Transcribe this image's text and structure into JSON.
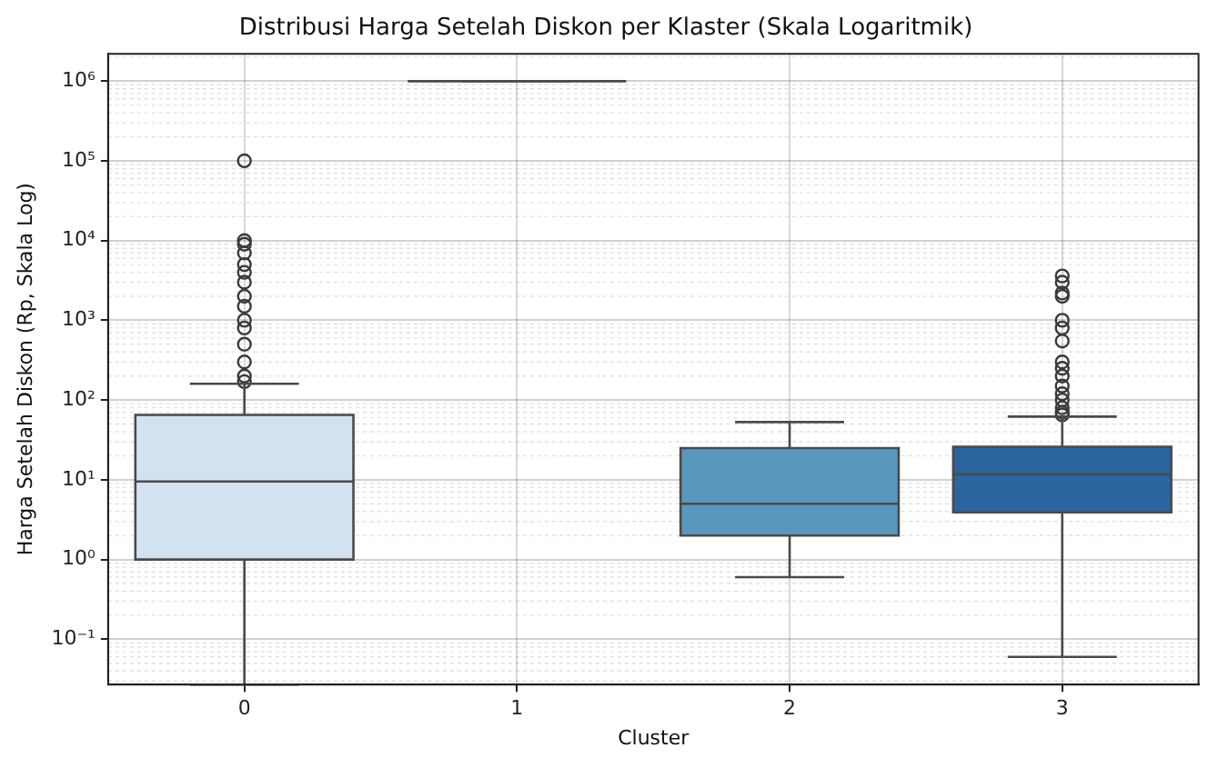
{
  "chart_data": {
    "type": "box",
    "title": "Distribusi Harga Setelah Diskon per Klaster (Skala Logaritmik)",
    "xlabel": "Cluster",
    "ylabel": "Harga Setelah Diskon (Rp, Skala Log)",
    "categories": [
      "0",
      "1",
      "2",
      "3"
    ],
    "colors": [
      "#d2e2f0",
      null,
      "#5b96bf",
      "#2a65a0"
    ],
    "boxes": [
      {
        "low": 0.027,
        "q1": 1,
        "median": 9.5,
        "q3": 65,
        "high": 160,
        "outliers": [
          170,
          200,
          300,
          500,
          800,
          1000,
          1500,
          2000,
          3000,
          4000,
          5000,
          7000,
          9000,
          10000,
          100000
        ]
      },
      {
        "low": 1000000,
        "q1": 1000000,
        "median": 1000000,
        "q3": 1000000,
        "high": 1000000
      },
      {
        "low": 0.6,
        "q1": 2,
        "median": 5,
        "q3": 25,
        "high": 53
      },
      {
        "low": 0.06,
        "q1": 3.9,
        "median": 11.7,
        "q3": 26,
        "high": 62,
        "outliers": [
          65,
          70,
          80,
          100,
          120,
          150,
          200,
          250,
          300,
          550,
          800,
          1000,
          2000,
          2200,
          3000,
          3600
        ]
      }
    ],
    "log": true,
    "grid": true,
    "ylim": [
      0.027,
      2200000
    ],
    "yticks": [
      {
        "value": 0.1,
        "label": "10⁻¹"
      },
      {
        "value": 1,
        "label": "10⁰"
      },
      {
        "value": 10,
        "label": "10¹"
      },
      {
        "value": 100,
        "label": "10²"
      },
      {
        "value": 1000,
        "label": "10³"
      },
      {
        "value": 10000,
        "label": "10⁴"
      },
      {
        "value": 100000,
        "label": "10⁵"
      },
      {
        "value": 1000000,
        "label": "10⁶"
      }
    ]
  }
}
